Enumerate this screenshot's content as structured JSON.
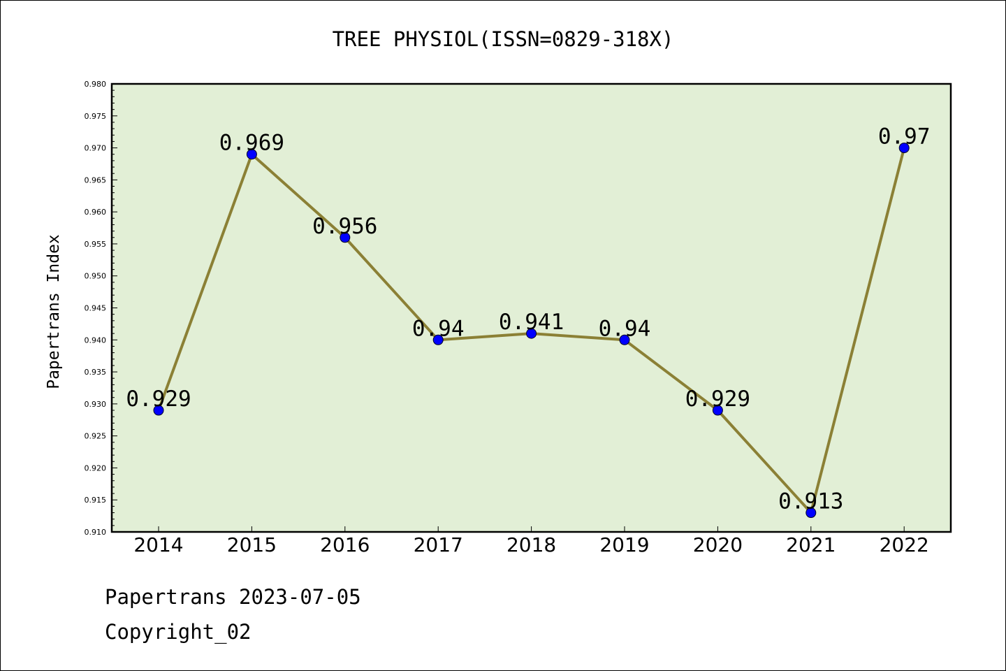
{
  "chart_data": {
    "type": "line",
    "title": "TREE PHYSIOL(ISSN=0829-318X)",
    "xlabel": "",
    "ylabel": "Papertrans Index",
    "categories": [
      "2014",
      "2015",
      "2016",
      "2017",
      "2018",
      "2019",
      "2020",
      "2021",
      "2022"
    ],
    "values": [
      0.929,
      0.969,
      0.956,
      0.94,
      0.941,
      0.94,
      0.929,
      0.913,
      0.97
    ],
    "data_labels": [
      "0.929",
      "0.969",
      "0.956",
      "0.94",
      "0.941",
      "0.94",
      "0.929",
      "0.913",
      "0.97"
    ],
    "yticks": [
      "0.910",
      "0.915",
      "0.920",
      "0.925",
      "0.930",
      "0.935",
      "0.940",
      "0.945",
      "0.950",
      "0.955",
      "0.960",
      "0.965",
      "0.970",
      "0.975",
      "0.980"
    ],
    "ylim": [
      0.91,
      0.98
    ],
    "grid": false,
    "colors": {
      "plot_background": "#e2efd6",
      "line": "#8b8035",
      "marker": "#0000ff"
    }
  },
  "footer": {
    "line1": "Papertrans 2023-07-05",
    "line2": "Copyright_02"
  }
}
